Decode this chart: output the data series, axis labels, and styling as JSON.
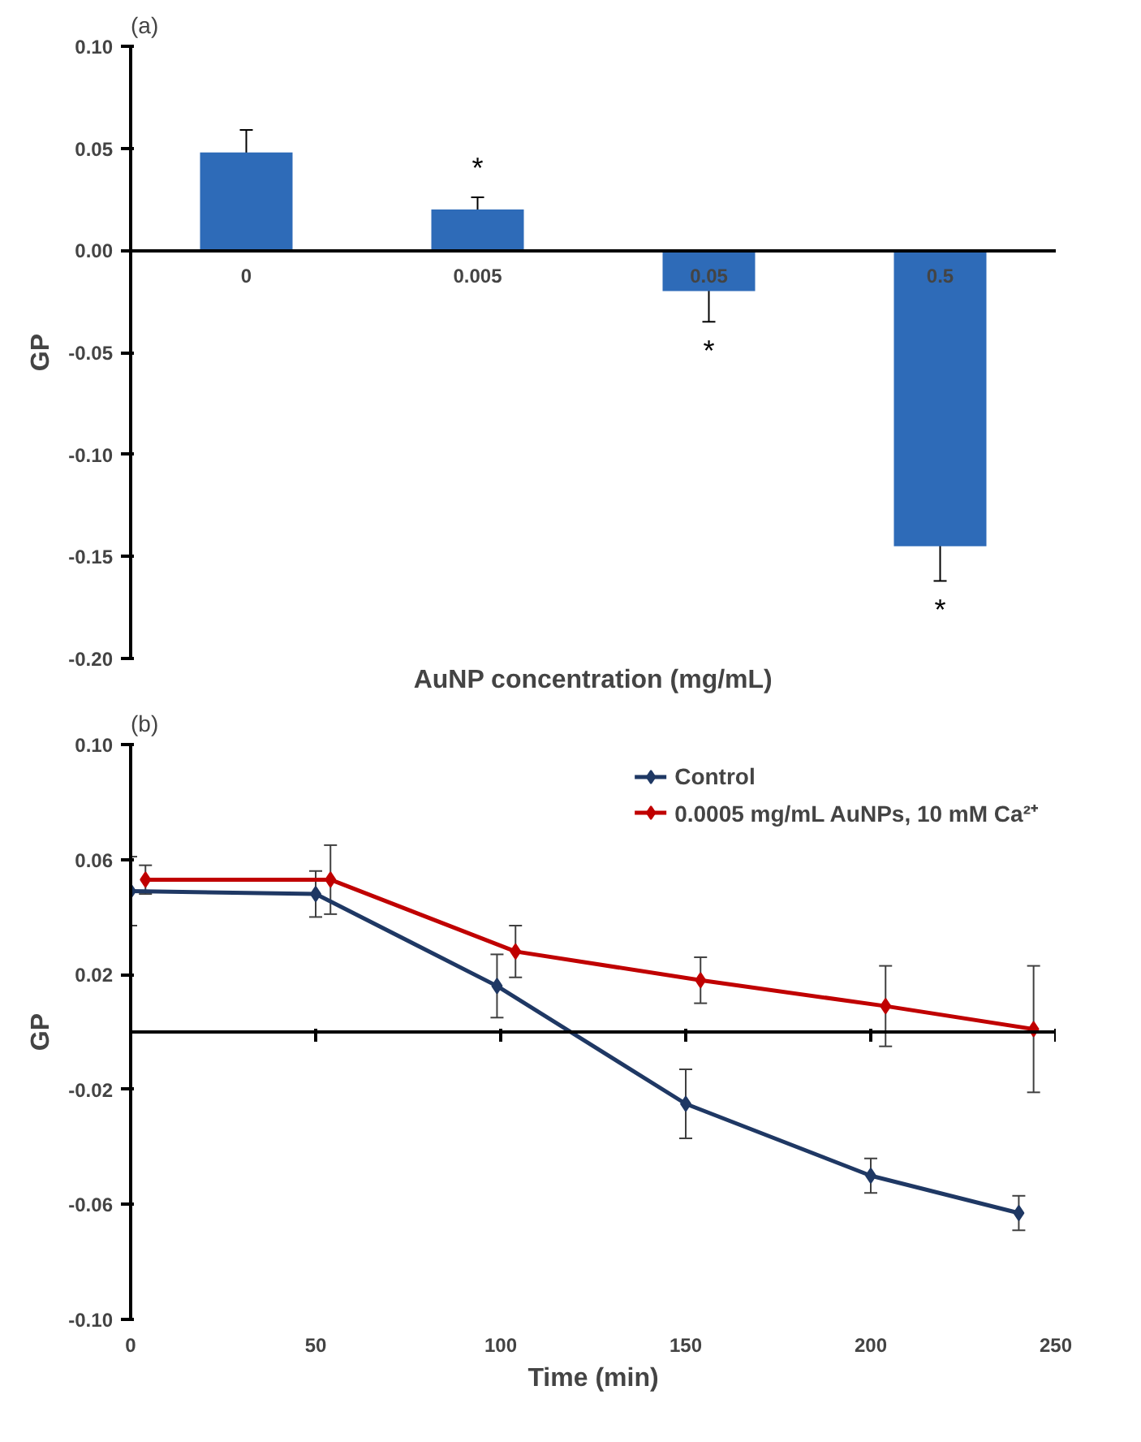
{
  "chart_data": [
    {
      "type": "bar",
      "title": "(a)",
      "xlabel": "AuNP concentration (mg/mL)",
      "ylabel": "GP",
      "categories": [
        "0",
        "0.005",
        "0.05",
        "0.5"
      ],
      "values": [
        0.048,
        0.02,
        -0.02,
        -0.145
      ],
      "color": "#2e6bb8",
      "errors": [
        0.011,
        0.006,
        0.015,
        0.017
      ],
      "ylim": [
        -0.2,
        0.1
      ],
      "yticks": [
        {
          "value": -0.2,
          "label": "-0.20"
        },
        {
          "value": -0.15,
          "label": "-0.15"
        },
        {
          "value": -0.1,
          "label": "-0.10"
        },
        {
          "value": -0.05,
          "label": "-0.05"
        },
        {
          "value": 0,
          "label": "0.00"
        },
        {
          "value": 0.05,
          "label": "0.05"
        },
        {
          "value": 0.1,
          "label": "0.10"
        }
      ],
      "grid": false,
      "annotations": [
        "*",
        "*",
        "*"
      ]
    },
    {
      "type": "line",
      "title": "(b)",
      "xlabel": "Time (min)",
      "ylabel": "GP",
      "xlim": [
        0,
        250
      ],
      "xticks": [
        0,
        50,
        100,
        150,
        200,
        250
      ],
      "ylim": [
        -0.1,
        0.1
      ],
      "yticks": [
        {
          "value": -0.1,
          "label": "-0.10"
        },
        {
          "value": -0.06,
          "label": "-0.06"
        },
        {
          "value": -0.02,
          "label": "-0.02"
        },
        {
          "value": 0.02,
          "label": "0.02"
        },
        {
          "value": 0.06,
          "label": "0.06"
        },
        {
          "value": 0.1,
          "label": "0.10"
        }
      ],
      "grid": false,
      "legend": "top right",
      "marker": "diamond",
      "line_style": "solid",
      "series": [
        {
          "name": "Control",
          "color": "#1f3864",
          "x": [
            0,
            50,
            99,
            150,
            200,
            240
          ],
          "values": [
            0.049,
            0.048,
            0.016,
            -0.025,
            -0.05,
            -0.063
          ],
          "errors": [
            0.012,
            0.008,
            0.011,
            0.012,
            0.006,
            0.006
          ]
        },
        {
          "name": "0.0005 mg/mL AuNPs, 10 mM Ca²⁺",
          "color": "#c00000",
          "x": [
            4,
            54,
            104,
            154,
            204,
            244
          ],
          "values": [
            0.053,
            0.053,
            0.028,
            0.018,
            0.009,
            0.001
          ],
          "errors": [
            0.005,
            0.012,
            0.009,
            0.008,
            0.014,
            0.022
          ]
        }
      ]
    }
  ]
}
